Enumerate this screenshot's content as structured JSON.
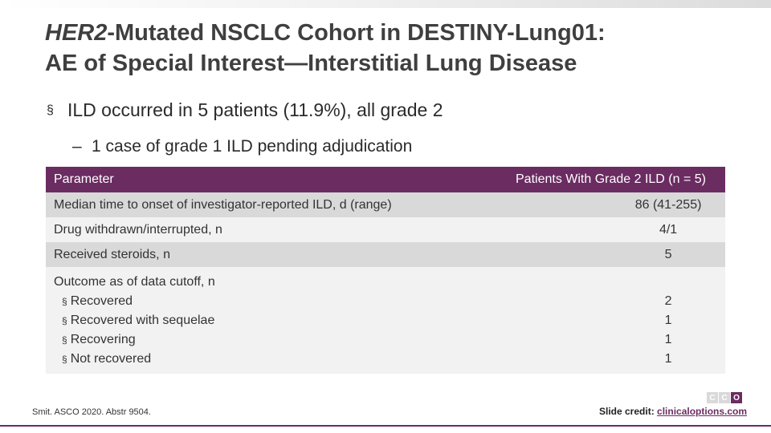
{
  "title": {
    "line1_italic": "HER2",
    "line1_rest": "-Mutated NSCLC Cohort in DESTINY-Lung01:",
    "line2": "AE of Special Interest—Interstitial Lung Disease"
  },
  "bullets": {
    "main": "ILD occurred in 5 patients (11.9%), all grade 2",
    "main_marker": "§",
    "sub": "1 case of grade 1 ILD pending adjudication",
    "sub_marker": "–"
  },
  "table": {
    "headers": [
      "Parameter",
      "Patients With Grade 2 ILD (n = 5)"
    ],
    "rows": [
      {
        "label": "Median time to onset of investigator-reported ILD, d (range)",
        "value": "86 (41-255)"
      },
      {
        "label": "Drug withdrawn/interrupted, n",
        "value": "4/1"
      },
      {
        "label": "Received steroids, n",
        "value": "5"
      }
    ],
    "outcome": {
      "label": "Outcome as of data cutoff, n",
      "items": [
        {
          "label": "Recovered",
          "value": "2"
        },
        {
          "label": "Recovered with sequelae",
          "value": "1"
        },
        {
          "label": "Recovering",
          "value": "1"
        },
        {
          "label": "Not recovered",
          "value": "1"
        }
      ],
      "item_marker": "§"
    }
  },
  "footnote": "Smit. ASCO 2020. Abstr 9504.",
  "logo": [
    "C",
    "C",
    "O"
  ],
  "credit": {
    "label": "Slide credit:",
    "link": "clinicaloptions.com"
  },
  "colors": {
    "accent": "#6b2c62",
    "row_shade": "#d9d9d9",
    "row_light": "#f2f2f2"
  }
}
